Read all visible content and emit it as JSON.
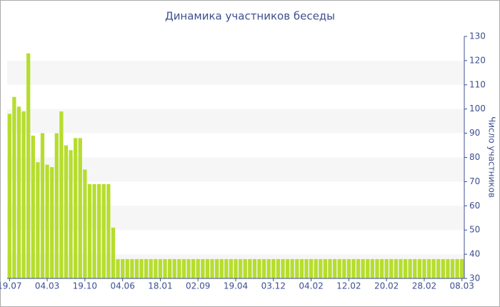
{
  "chart_data": {
    "type": "bar",
    "title": "Динамика участников беседы",
    "y_label": "Число участников",
    "categories": [
      "19.07",
      null,
      null,
      null,
      null,
      null,
      null,
      null,
      "04.03",
      null,
      null,
      null,
      null,
      null,
      null,
      null,
      "19.10",
      null,
      null,
      null,
      null,
      null,
      null,
      null,
      "04.06",
      null,
      null,
      null,
      null,
      null,
      null,
      null,
      "18.01",
      null,
      null,
      null,
      null,
      null,
      null,
      null,
      "02.09",
      null,
      null,
      null,
      null,
      null,
      null,
      null,
      "19.04",
      null,
      null,
      null,
      null,
      null,
      null,
      null,
      "03.12",
      null,
      null,
      null,
      null,
      null,
      null,
      null,
      "04.02",
      null,
      null,
      null,
      null,
      null,
      null,
      null,
      "12.02",
      null,
      null,
      null,
      null,
      null,
      null,
      null,
      "20.02",
      null,
      null,
      null,
      null,
      null,
      null,
      null,
      "28.02",
      null,
      null,
      null,
      null,
      null,
      null,
      null,
      "08.03"
    ],
    "values": [
      98,
      105,
      101,
      99,
      123,
      89,
      78,
      90,
      77,
      76,
      90,
      99,
      85,
      83,
      88,
      88,
      75,
      69,
      69,
      69,
      69,
      69,
      51,
      38,
      38,
      38,
      38,
      38,
      38,
      38,
      38,
      38,
      38,
      38,
      38,
      38,
      38,
      38,
      38,
      38,
      38,
      38,
      38,
      38,
      38,
      38,
      38,
      38,
      38,
      38,
      38,
      38,
      38,
      38,
      38,
      38,
      38,
      38,
      38,
      38,
      38,
      38,
      38,
      38,
      38,
      38,
      38,
      38,
      38,
      38,
      38,
      38,
      38,
      38,
      38,
      38,
      38,
      38,
      38,
      38,
      38,
      38,
      38,
      38,
      38,
      38,
      38,
      38,
      38,
      38,
      38,
      38,
      38,
      38,
      38,
      38,
      38
    ],
    "color": "#b6dd2e",
    "ylim": [
      30,
      130
    ],
    "yticks": [
      30,
      40,
      50,
      60,
      70,
      80,
      90,
      100,
      110,
      120,
      130
    ],
    "y_axis_side": "right",
    "grid": true
  }
}
